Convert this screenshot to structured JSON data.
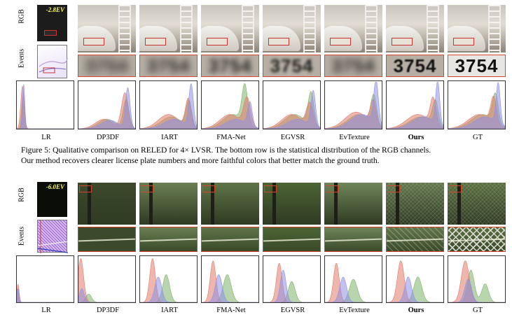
{
  "figure5": {
    "row_labels": {
      "rgb": "RGB",
      "events": "Events"
    },
    "exposure": "-2.8EV",
    "plate_text": "3754",
    "methods": [
      "LR",
      "DP3DF",
      "IART",
      "FMA-Net",
      "EGVSR",
      "EvTexture",
      "Ours",
      "GT"
    ],
    "caption_line1": "Figure 5: Qualitative comparison on RELED for 4× LVSR. The bottom row is the statistical distribution of the RGB channels.",
    "caption_line2": "Our method recovers clearer license plate numbers and more faithful colors that better match the ground truth."
  },
  "figure6": {
    "row_labels": {
      "rgb": "RGB",
      "events": "Events"
    },
    "exposure": "-6.0EV",
    "methods": [
      "LR",
      "DP3DF",
      "IART",
      "FMA-Net",
      "EGVSR",
      "EvTexture",
      "Ours",
      "GT"
    ]
  },
  "colors": {
    "red_channel": "#e07a6a",
    "green_channel": "#7fb36a",
    "blue_channel": "#8f90e6",
    "crop_border": "#d9442b"
  }
}
